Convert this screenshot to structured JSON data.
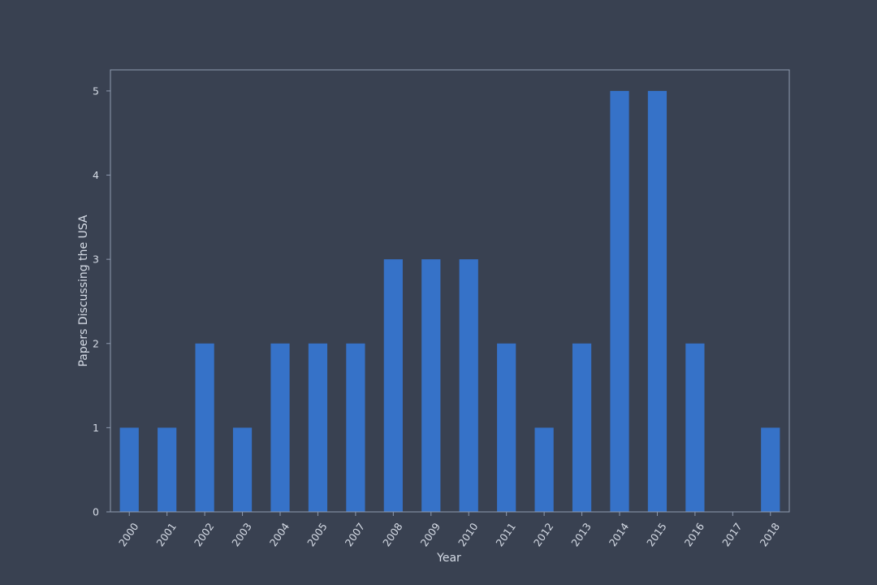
{
  "chart_data": {
    "type": "bar",
    "title": "",
    "xlabel": "Year",
    "ylabel": "Papers Discussing the USA",
    "categories": [
      "2000",
      "2001",
      "2002",
      "2003",
      "2004",
      "2005",
      "2007",
      "2008",
      "2009",
      "2010",
      "2011",
      "2012",
      "2013",
      "2014",
      "2015",
      "2016",
      "2017",
      "2018"
    ],
    "values": [
      1,
      1,
      2,
      1,
      2,
      2,
      2,
      3,
      3,
      3,
      2,
      1,
      2,
      5,
      5,
      2,
      0,
      1
    ],
    "ylim": [
      0,
      5.25
    ],
    "yticks": [
      "0",
      "1",
      "2",
      "3",
      "4",
      "5"
    ],
    "grid": false,
    "legend": "none",
    "colors": {
      "background": "#394151",
      "bar": "#3672c8",
      "axis": "#8f9bb0",
      "text": "#d6dce6"
    }
  }
}
